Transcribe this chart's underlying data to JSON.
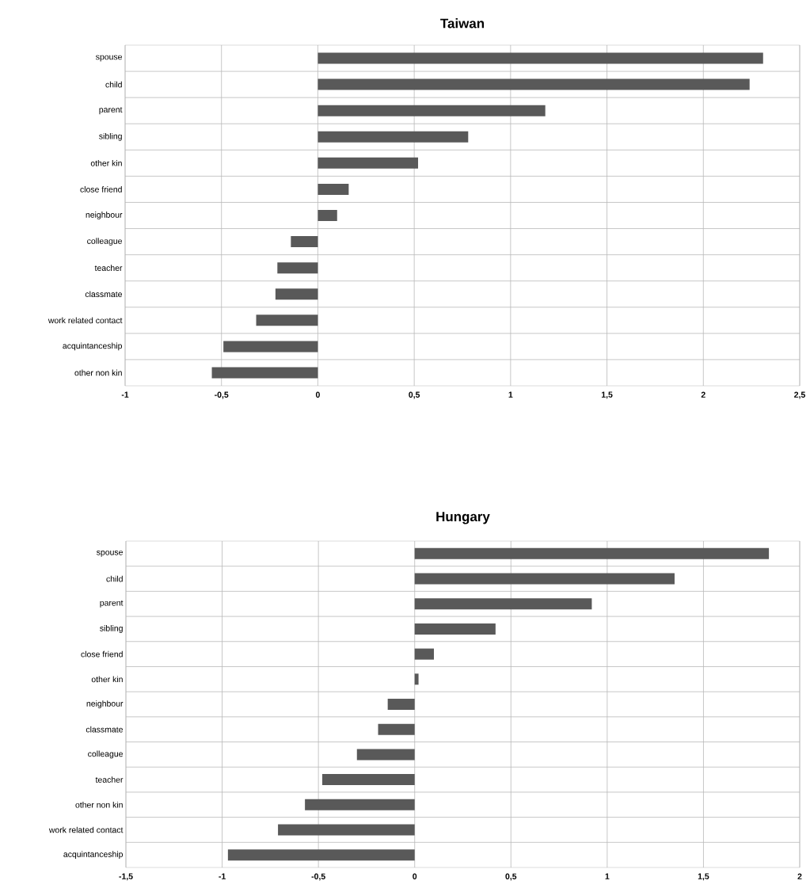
{
  "chart_data": [
    {
      "type": "bar",
      "orientation": "horizontal",
      "title": "Taiwan",
      "categories": [
        "spouse",
        "child",
        "parent",
        "sibling",
        "other kin",
        "close friend",
        "neighbour",
        "colleague",
        "teacher",
        "classmate",
        "work related contact",
        "acquintanceship",
        "other non kin"
      ],
      "values": [
        2.31,
        2.24,
        1.18,
        0.78,
        0.52,
        0.16,
        0.1,
        -0.14,
        -0.21,
        -0.22,
        -0.32,
        -0.49,
        -0.55
      ],
      "color": "#595959",
      "xlim": [
        -1,
        2.5
      ],
      "xticks": [
        {
          "value": -1,
          "label": "-1"
        },
        {
          "value": -0.5,
          "label": "-0,5"
        },
        {
          "value": 0,
          "label": "0"
        },
        {
          "value": 0.5,
          "label": "0,5"
        },
        {
          "value": 1,
          "label": "1"
        },
        {
          "value": 1.5,
          "label": "1,5"
        },
        {
          "value": 2,
          "label": "2"
        },
        {
          "value": 2.5,
          "label": "2,5"
        }
      ],
      "grid": true
    },
    {
      "type": "bar",
      "orientation": "horizontal",
      "title": "Hungary",
      "categories": [
        "spouse",
        "child",
        "parent",
        "sibling",
        "close friend",
        "other kin",
        "neighbour",
        "classmate",
        "colleague",
        "teacher",
        "other non kin",
        "work related contact",
        "acquintanceship"
      ],
      "values": [
        1.84,
        1.35,
        0.92,
        0.42,
        0.1,
        0.02,
        -0.14,
        -0.19,
        -0.3,
        -0.48,
        -0.57,
        -0.71,
        -0.97
      ],
      "color": "#595959",
      "xlim": [
        -1.5,
        2
      ],
      "xticks": [
        {
          "value": -1.5,
          "label": "-1,5"
        },
        {
          "value": -1,
          "label": "-1"
        },
        {
          "value": -0.5,
          "label": "-0,5"
        },
        {
          "value": 0,
          "label": "0"
        },
        {
          "value": 0.5,
          "label": "0,5"
        },
        {
          "value": 1,
          "label": "1"
        },
        {
          "value": 1.5,
          "label": "1,5"
        },
        {
          "value": 2,
          "label": "2"
        }
      ],
      "grid": true
    }
  ]
}
